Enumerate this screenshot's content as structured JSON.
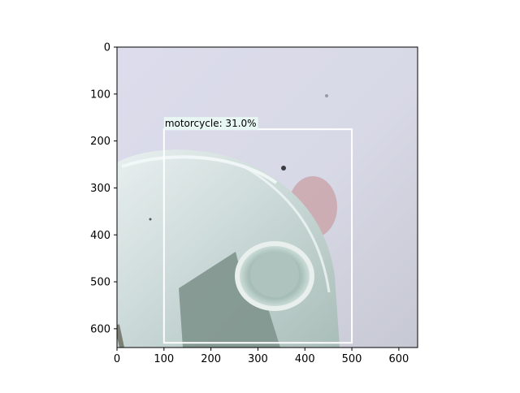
{
  "figure": {
    "image_description_icon": "photo-of-glass-object",
    "detection": {
      "label": "motorcycle: 31.0%",
      "class": "motorcycle",
      "confidence_percent": 31.0,
      "box": {
        "x_min": 100,
        "y_min": 175,
        "x_max": 500,
        "y_max": 630
      },
      "box_color": "#ffffff",
      "label_bg_color": "#e8f6f4"
    },
    "x_axis": {
      "range": [
        0,
        640
      ],
      "ticks": [
        0,
        100,
        200,
        300,
        400,
        500,
        600
      ],
      "tick_labels": [
        "0",
        "100",
        "200",
        "300",
        "400",
        "500",
        "600"
      ]
    },
    "y_axis": {
      "range": [
        640,
        0
      ],
      "ticks": [
        0,
        100,
        200,
        300,
        400,
        500,
        600
      ],
      "tick_labels": [
        "0",
        "100",
        "200",
        "300",
        "400",
        "500",
        "600"
      ]
    }
  }
}
